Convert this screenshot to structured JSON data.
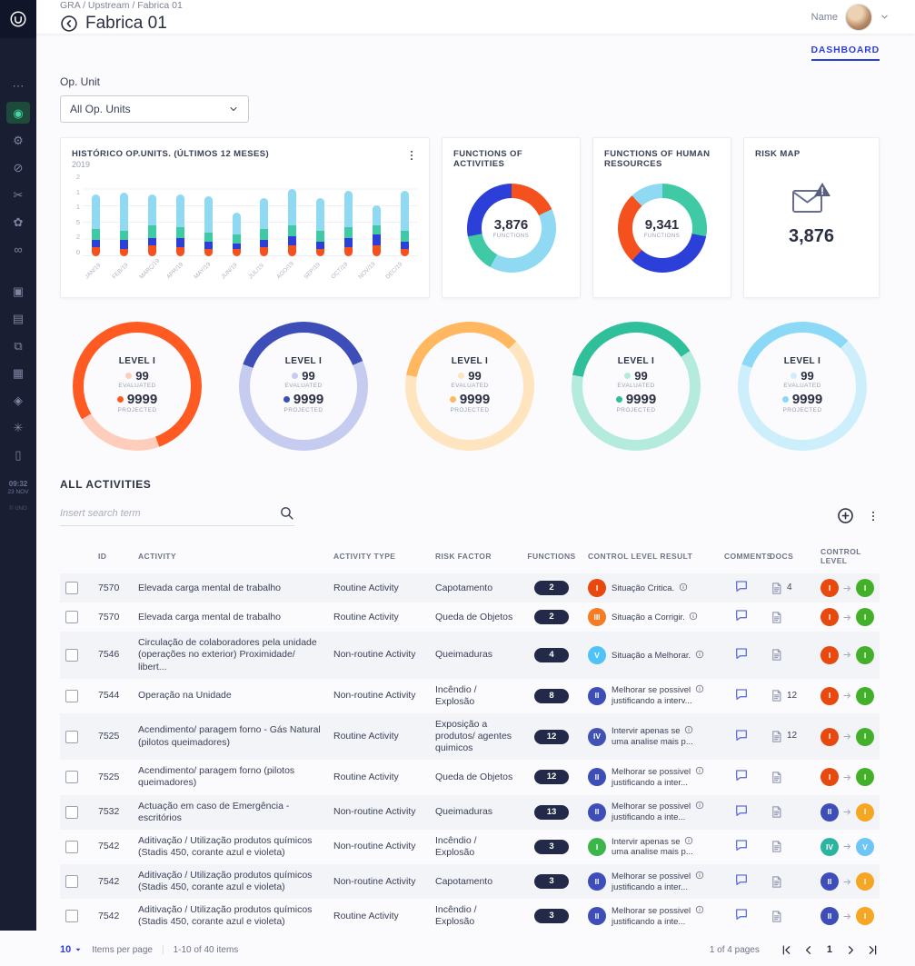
{
  "sidebar": {
    "groups": [
      [
        {
          "icon": "more-horizontal"
        },
        {
          "icon": "target",
          "active": true
        },
        {
          "icon": "gear"
        },
        {
          "icon": "ban"
        },
        {
          "icon": "scissors"
        },
        {
          "icon": "flower"
        },
        {
          "icon": "infinity"
        }
      ],
      [
        {
          "icon": "image"
        },
        {
          "icon": "rows"
        },
        {
          "icon": "copy"
        },
        {
          "icon": "grid"
        },
        {
          "icon": "diamond"
        },
        {
          "icon": "asterisk"
        },
        {
          "icon": "file"
        }
      ]
    ],
    "time": "09:32",
    "date": "23 NOV",
    "copyright": "© UNO"
  },
  "header": {
    "breadcrumb": "GRA / Upstream / Fabrica 01",
    "title": "Fabrica 01",
    "user_label": "Name",
    "tab": "DASHBOARD"
  },
  "filter": {
    "label": "Op. Unit",
    "selected": "All Op. Units"
  },
  "cards": {
    "historico": {
      "title": "HISTÓRICO OP.UNITS. (ÚLTIMOS 12 MESES)",
      "subtitle": "2019",
      "y_ticks": [
        "2",
        "1",
        "1",
        "5",
        "2",
        "0"
      ],
      "months": [
        "JAN/19",
        "FEB/19",
        "MARÇ/19",
        "APR/19",
        "MAY/19",
        "JUN/19",
        "JUL/19",
        "AGO/19",
        "SEP/19",
        "OCT/19",
        "NOV/19",
        "DEC/19"
      ],
      "series": [
        {
          "name": "Orange",
          "color": "#f4511e",
          "values": [
            10,
            8,
            12,
            10,
            8,
            8,
            10,
            12,
            8,
            10,
            12,
            8
          ]
        },
        {
          "name": "Blue",
          "color": "#2c3fd9",
          "values": [
            8,
            10,
            8,
            10,
            8,
            6,
            8,
            10,
            8,
            10,
            12,
            8
          ]
        },
        {
          "name": "Teal",
          "color": "#3fc9a5",
          "values": [
            12,
            10,
            14,
            12,
            10,
            10,
            12,
            12,
            12,
            12,
            10,
            12
          ]
        },
        {
          "name": "Light blue",
          "color": "#8fd9f2",
          "values": [
            38,
            42,
            34,
            36,
            40,
            24,
            34,
            40,
            36,
            40,
            22,
            44
          ]
        }
      ]
    },
    "functions_activities": {
      "title": "FUNCTIONS OF ACTIVITIES",
      "value": "3,876",
      "unit": "FUNCTIONS",
      "segments": [
        {
          "color": "#f4511e",
          "pct": 18
        },
        {
          "color": "#8fd9f2",
          "pct": 40
        },
        {
          "color": "#3fc9a5",
          "pct": 14
        },
        {
          "color": "#2c3fd9",
          "pct": 28
        }
      ]
    },
    "functions_hr": {
      "title": "FUNCTIONS OF HUMAN RESOURCES",
      "value": "9,341",
      "unit": "FUNCTIONS",
      "segments": [
        {
          "color": "#3fc9a5",
          "pct": 28
        },
        {
          "color": "#2c3fd9",
          "pct": 34
        },
        {
          "color": "#f4511e",
          "pct": 26
        },
        {
          "color": "#8fd9f2",
          "pct": 12
        }
      ]
    },
    "risk_map": {
      "title": "RISK MAP",
      "value": "3,876"
    }
  },
  "gauges": [
    {
      "title": "LEVEL I",
      "evaluated": "99",
      "evaluated_label": "EVALUATED",
      "projected": "9999",
      "projected_label": "PROJECTED",
      "ring": "#ff5a22",
      "arc": "#ffcdbb",
      "arc_pct": 22,
      "arc_start": 160,
      "dot_eval": "#ffcdbb",
      "dot_proj": "#ff5a22"
    },
    {
      "title": "LEVEL I",
      "evaluated": "99",
      "evaluated_label": "EVALUATED",
      "projected": "9999",
      "projected_label": "PROJECTED",
      "ring": "#c6cbf0",
      "arc": "#3d4eb8",
      "arc_pct": 38,
      "arc_start": -70,
      "dot_eval": "#c6cbf0",
      "dot_proj": "#3d4eb8"
    },
    {
      "title": "LEVEL I",
      "evaluated": "99",
      "evaluated_label": "EVALUATED",
      "projected": "9999",
      "projected_label": "PROJECTED",
      "ring": "#ffe4c0",
      "arc": "#ffb760",
      "arc_pct": 35,
      "arc_start": -80,
      "dot_eval": "#ffe4c0",
      "dot_proj": "#ffb760"
    },
    {
      "title": "LEVEL I",
      "evaluated": "99",
      "evaluated_label": "EVALUATED",
      "projected": "9999",
      "projected_label": "PROJECTED",
      "ring": "#b4ebdc",
      "arc": "#2fbf9a",
      "arc_pct": 38,
      "arc_start": -80,
      "dot_eval": "#b4ebdc",
      "dot_proj": "#2fbf9a"
    },
    {
      "title": "LEVEL I",
      "evaluated": "99",
      "evaluated_label": "EVALUATED",
      "projected": "9999",
      "projected_label": "PROJECTED",
      "ring": "#cdeffc",
      "arc": "#8bd8f7",
      "arc_pct": 32,
      "arc_start": -70,
      "dot_eval": "#cdeffc",
      "dot_proj": "#8bd8f7"
    }
  ],
  "activities": {
    "section_title": "ALL ACTIVITIES",
    "search_placeholder": "Insert search term",
    "columns": [
      "ID",
      "ACTIVITY",
      "ACTIVITY TYPE",
      "RISK FACTOR",
      "FUNCTIONS",
      "CONTROL LEVEL RESULT",
      "COMMENTS",
      "DOCS",
      "CONTROL LEVEL"
    ],
    "rows": [
      {
        "id": "7570",
        "activity": "Elevada carga mental de trabalho",
        "type": "Routine Activity",
        "risk": "Capotamento",
        "functions": "2",
        "result": {
          "num": "I",
          "color": "#e8490f",
          "line1": "Situação Critica.",
          "line2": ""
        },
        "docs": "4",
        "level_from": {
          "num": "I",
          "color": "#e8490f"
        },
        "level_to": {
          "num": "I",
          "color": "#43b02a"
        }
      },
      {
        "id": "7570",
        "activity": "Elevada carga mental de trabalho",
        "type": "Routine Activity",
        "risk": "Queda de Objetos",
        "functions": "2",
        "result": {
          "num": "III",
          "color": "#f57c23",
          "line1": "Situação a Corrigir.",
          "line2": ""
        },
        "docs": "",
        "level_from": {
          "num": "I",
          "color": "#e8490f"
        },
        "level_to": {
          "num": "I",
          "color": "#43b02a"
        }
      },
      {
        "id": "7546",
        "activity": "Circulação de colaboradores pela unidade (operações no exterior) Proximidade/ libert...",
        "type": "Non-routine Activity",
        "risk": "Queimaduras",
        "functions": "4",
        "result": {
          "num": "V",
          "color": "#4fc3f7",
          "line1": "Situação a Melhorar.",
          "line2": ""
        },
        "docs": "",
        "level_from": {
          "num": "I",
          "color": "#e8490f"
        },
        "level_to": {
          "num": "I",
          "color": "#43b02a"
        }
      },
      {
        "id": "7544",
        "activity": "Operação na Unidade",
        "type": "Non-routine Activity",
        "risk": "Incêndio / Explosão",
        "functions": "8",
        "result": {
          "num": "II",
          "color": "#3d4eb8",
          "line1": "Melhorar se possivel",
          "line2": "justificando a interv..."
        },
        "docs": "12",
        "level_from": {
          "num": "I",
          "color": "#e8490f"
        },
        "level_to": {
          "num": "I",
          "color": "#43b02a"
        }
      },
      {
        "id": "7525",
        "activity": "Acendimento/ paragem forno - Gás Natural (pilotos queimadores)",
        "type": "Routine Activity",
        "risk": "Exposição a produtos/ agentes quimicos",
        "functions": "12",
        "result": {
          "num": "IV",
          "color": "#4053b4",
          "line1": "Intervir apenas se",
          "line2": "uma analise mais p..."
        },
        "docs": "12",
        "level_from": {
          "num": "I",
          "color": "#e8490f"
        },
        "level_to": {
          "num": "I",
          "color": "#43b02a"
        }
      },
      {
        "id": "7525",
        "activity": "Acendimento/ paragem forno (pilotos queimadores)",
        "type": "Routine Activity",
        "risk": "Queda de Objetos",
        "functions": "12",
        "result": {
          "num": "II",
          "color": "#3d4eb8",
          "line1": "Melhorar se possivel",
          "line2": "justificando a inter..."
        },
        "docs": "",
        "level_from": {
          "num": "I",
          "color": "#e8490f"
        },
        "level_to": {
          "num": "I",
          "color": "#43b02a"
        }
      },
      {
        "id": "7532",
        "activity": "Actuação em caso de Emergência - escritórios",
        "type": "Non-routine Activity",
        "risk": "Queimaduras",
        "functions": "13",
        "result": {
          "num": "II",
          "color": "#3d4eb8",
          "line1": "Melhorar se possivel",
          "line2": "justificando a inte..."
        },
        "docs": "",
        "level_from": {
          "num": "II",
          "color": "#3d4eb8"
        },
        "level_to": {
          "num": "I",
          "color": "#f5a623"
        }
      },
      {
        "id": "7542",
        "activity": "Aditivação / Utilização produtos químicos (Stadis 450, corante azul e violeta)",
        "type": "Non-routine Activity",
        "risk": "Incêndio / Explosão",
        "functions": "3",
        "result": {
          "num": "I",
          "color": "#3cb54a",
          "line1": "Intervir apenas se",
          "line2": "uma analise mais p..."
        },
        "docs": "",
        "level_from": {
          "num": "IV",
          "color": "#2bb5a0"
        },
        "level_to": {
          "num": "V",
          "color": "#6ec6f5"
        }
      },
      {
        "id": "7542",
        "activity": "Aditivação / Utilização produtos químicos (Stadis 450, corante azul e violeta)",
        "type": "Non-routine Activity",
        "risk": "Capotamento",
        "functions": "3",
        "result": {
          "num": "II",
          "color": "#3d4eb8",
          "line1": "Melhorar se possivel",
          "line2": "justificando a inter..."
        },
        "docs": "",
        "level_from": {
          "num": "II",
          "color": "#3d4eb8"
        },
        "level_to": {
          "num": "I",
          "color": "#f5a623"
        }
      },
      {
        "id": "7542",
        "activity": "Aditivação / Utilização produtos químicos (Stadis 450, corante azul e violeta)",
        "type": "Routine Activity",
        "risk": "Incêndio / Explosão",
        "functions": "3",
        "result": {
          "num": "II",
          "color": "#3d4eb8",
          "line1": "Melhorar se possivel",
          "line2": "justificando a inte..."
        },
        "docs": "",
        "level_from": {
          "num": "II",
          "color": "#3d4eb8"
        },
        "level_to": {
          "num": "I",
          "color": "#f5a623"
        }
      }
    ],
    "footer": {
      "page_size": "10",
      "items_per_page_label": "Items per page",
      "range_label": "1-10 of 40 items",
      "page_info_label": "1 of 4 pages",
      "current_page": "1"
    }
  }
}
